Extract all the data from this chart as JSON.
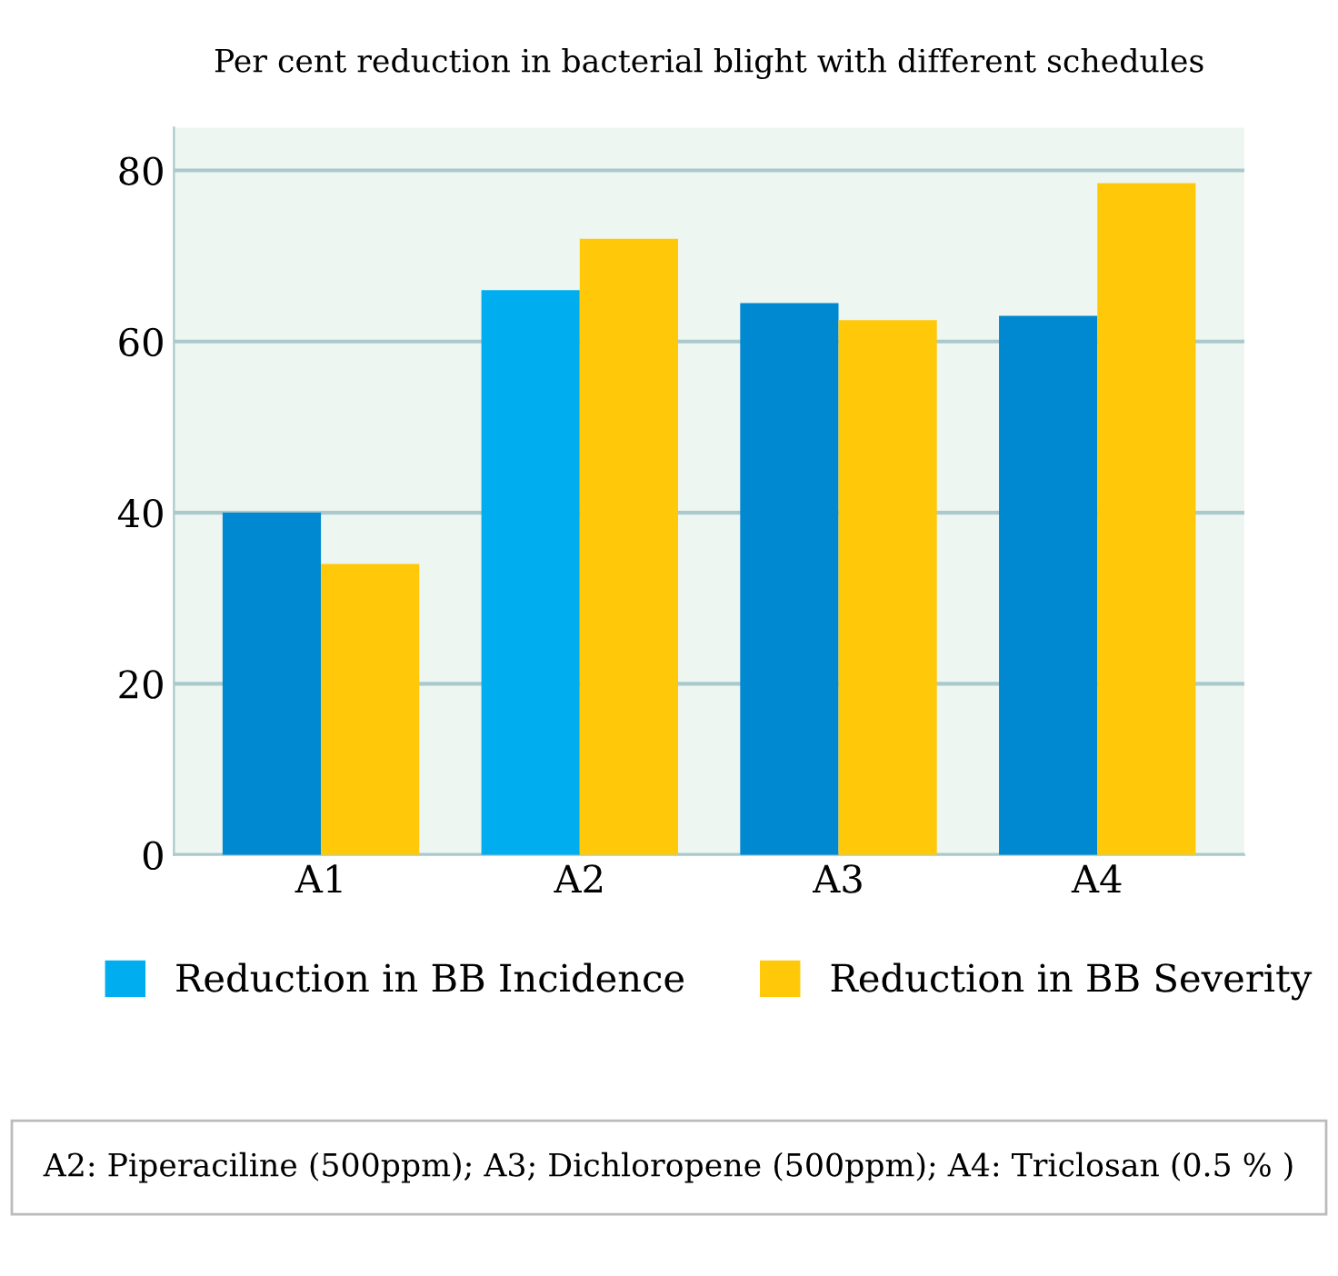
{
  "chart_data": {
    "type": "bar",
    "title": "Per cent reduction in bacterial blight with different schedules",
    "categories": [
      "A1",
      "A2",
      "A3",
      "A4"
    ],
    "series": [
      {
        "name": "Reduction in BB Incidence",
        "color": "#00aeef",
        "colors": [
          "#0088d0",
          "#00aeef",
          "#0088d0",
          "#0088d0"
        ],
        "values": [
          40,
          66,
          64.5,
          63
        ]
      },
      {
        "name": "Reduction in BB Severity",
        "color": "#ffc90a",
        "values": [
          34,
          72,
          62.5,
          78.5
        ]
      }
    ],
    "ylim": [
      0,
      85
    ],
    "yticks": [
      0,
      20,
      40,
      60,
      80
    ],
    "grid": "y",
    "legend": "bottom",
    "annotations": [
      "A2: Piperaciline (500ppm); A3; Dichloropene (500ppm); A4: Triclosan (0.5 % )"
    ]
  }
}
